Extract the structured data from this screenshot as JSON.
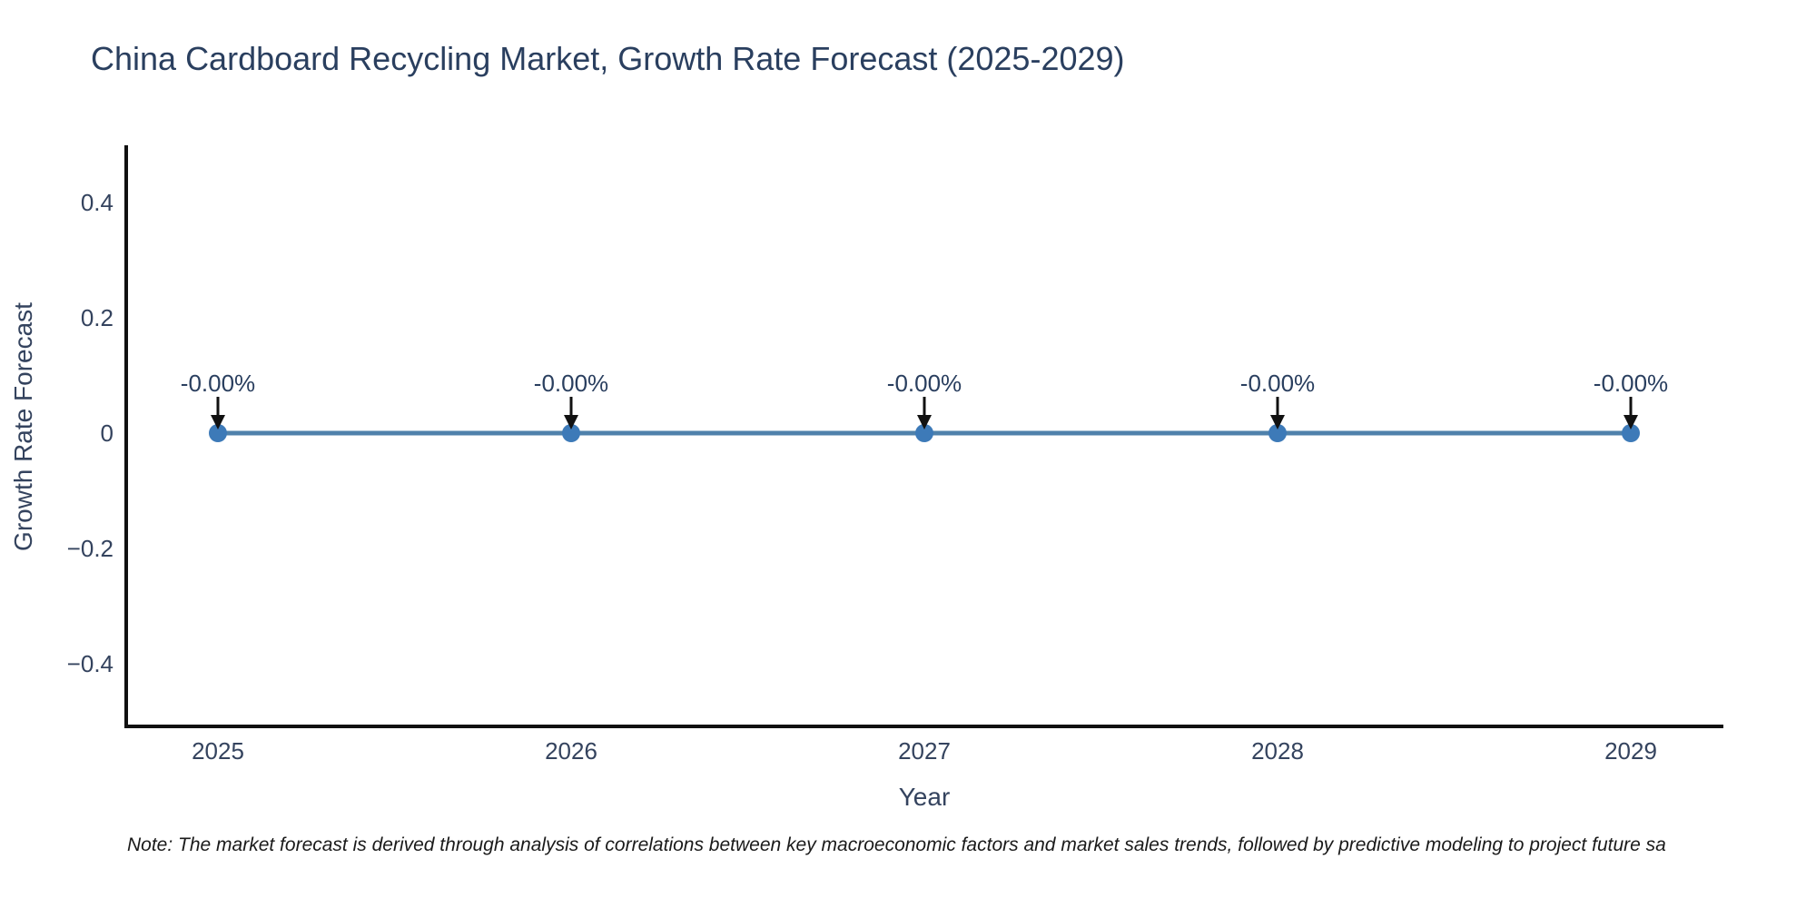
{
  "chart_data": {
    "type": "line",
    "title": "China Cardboard Recycling Market, Growth Rate Forecast (2025-2029)",
    "xlabel": "Year",
    "ylabel": "Growth Rate Forecast",
    "categories": [
      "2025",
      "2026",
      "2027",
      "2028",
      "2029"
    ],
    "series": [
      {
        "name": "Growth Rate Forecast",
        "values": [
          0,
          0,
          0,
          0,
          0
        ]
      }
    ],
    "point_labels": [
      "-0.00%",
      "-0.00%",
      "-0.00%",
      "-0.00%",
      "-0.00%"
    ],
    "yticks": [
      0.4,
      0.2,
      0,
      -0.2,
      -0.4
    ],
    "ytick_labels": [
      "0.4",
      "0.2",
      "0",
      "−0.2",
      "−0.4"
    ],
    "ylim": [
      -0.51,
      0.5
    ],
    "grid": false,
    "legend": "none",
    "colors": {
      "line": "#4f81ab",
      "marker": "#3d7ab8",
      "axis": "#111111",
      "arrow": "#111111",
      "title_text": "#2a3f5f",
      "tick_text": "#34435e",
      "annotation_text": "#2a3f5f"
    }
  },
  "note": "Note: The market forecast is derived through analysis of correlations between key macroeconomic factors and market sales trends, followed by predictive modeling to project future sa"
}
